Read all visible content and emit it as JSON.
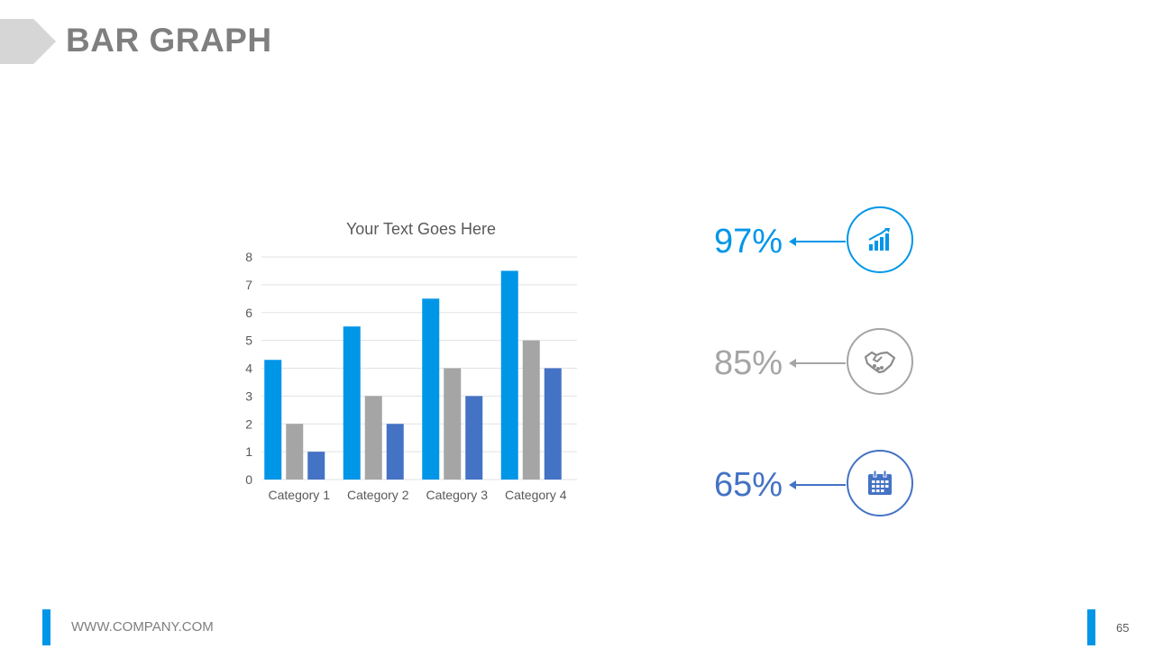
{
  "slide": {
    "title": "BAR GRAPH",
    "footer_url": "WWW.COMPANY.COM",
    "page_number": "65",
    "accent_color": "#0096e8"
  },
  "chart_data": {
    "type": "bar",
    "title": "Your Text Goes Here",
    "categories": [
      "Category 1",
      "Category 2",
      "Category 3",
      "Category 4"
    ],
    "series": [
      {
        "values": [
          4.3,
          5.5,
          6.5,
          7.5
        ],
        "color": "#0096e8"
      },
      {
        "values": [
          2,
          3,
          4,
          5
        ],
        "color": "#a5a5a5"
      },
      {
        "values": [
          1,
          2,
          3,
          4
        ],
        "color": "#4472c4"
      }
    ],
    "ylim": [
      0,
      8
    ],
    "yticks": [
      "0",
      "1",
      "2",
      "3",
      "4",
      "5",
      "6",
      "7",
      "8"
    ],
    "grid": true,
    "legend": "none"
  },
  "stats": [
    {
      "value": "97%",
      "color": "#0096e8",
      "icon": "growth-chart-icon"
    },
    {
      "value": "85%",
      "color": "#a5a5a5",
      "icon": "handshake-icon"
    },
    {
      "value": "65%",
      "color": "#4472c4",
      "icon": "calendar-icon"
    }
  ]
}
